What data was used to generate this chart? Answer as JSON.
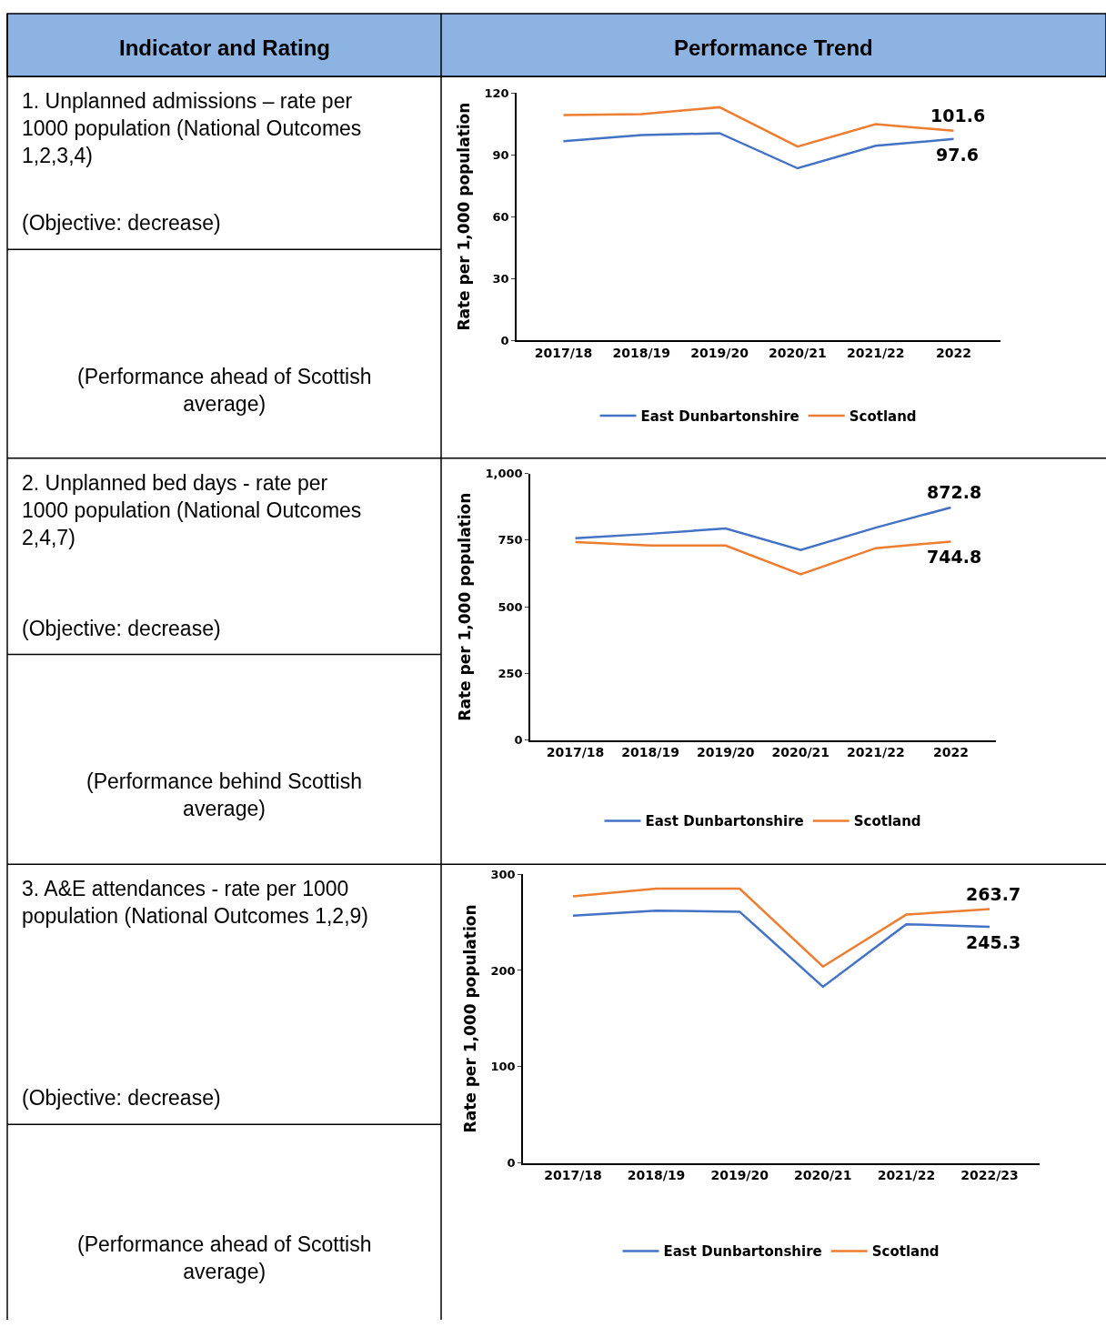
{
  "chart_data": [
    {
      "type": "other",
      "annotations": [
        "Indicator and Rating",
        "Performance Trend"
      ]
    },
    {
      "type": "other",
      "annotations": [
        "1. Unplanned admissions – rate per 1000 population (National Outcomes 1,2,3,4)",
        "(Objective: decrease)",
        "(Performance ahead of Scottish average)"
      ]
    },
    {
      "type": "line",
      "categories": [
        "2017/18",
        "2018/19",
        "2019/20",
        "2020/21",
        "2021/22",
        "2022"
      ],
      "ylabel": "Rate per 1,000 population",
      "ylim": [
        0,
        120
      ],
      "yticks": [
        0,
        30,
        60,
        90,
        120
      ],
      "legend": "bottom",
      "series": [
        {
          "name": "East Dunbartonshire",
          "color": "#4472c4",
          "values": [
            96.5,
            99.5,
            100.4,
            83.4,
            94.3,
            97.6
          ],
          "value_labels": [
            null,
            null,
            null,
            null,
            null,
            "97.6"
          ]
        },
        {
          "name": "Scotland",
          "color": "#ed7d31",
          "values": [
            109.2,
            109.6,
            113,
            93.9,
            104.8,
            101.6
          ],
          "value_labels": [
            null,
            null,
            null,
            null,
            null,
            "101.6"
          ]
        }
      ]
    },
    {
      "type": "other",
      "annotations": [
        "2. Unplanned bed days - rate per 1000 population (National Outcomes 2,4,7)",
        "(Objective: decrease)",
        "(Performance behind Scottish average)"
      ]
    },
    {
      "type": "line",
      "categories": [
        "2017/18",
        "2018/19",
        "2019/20",
        "2020/21",
        "2021/22",
        "2022"
      ],
      "ylabel": "Rate per 1,000 population",
      "ylim": [
        0,
        1000
      ],
      "yticks": [
        0,
        250,
        500,
        750,
        {
          "value": 1000,
          "label": "1,000"
        }
      ],
      "legend": "bottom",
      "series": [
        {
          "name": "East Dunbartonshire",
          "color": "#4472c4",
          "values": [
            757,
            774,
            794,
            713,
            797,
            872.8
          ],
          "value_labels": [
            null,
            null,
            null,
            null,
            null,
            "872.8"
          ]
        },
        {
          "name": "Scotland",
          "color": "#ed7d31",
          "values": [
            743,
            730,
            730,
            622,
            720,
            744.8
          ],
          "value_labels": [
            null,
            null,
            null,
            null,
            null,
            "744.8"
          ]
        }
      ]
    },
    {
      "type": "other",
      "annotations": [
        "3. A&E attendances - rate per 1000 population (National Outcomes 1,2,9)",
        "(Objective: decrease)",
        "(Performance ahead of Scottish average)"
      ]
    },
    {
      "type": "line",
      "categories": [
        "2017/18",
        "2018/19",
        "2019/20",
        "2020/21",
        "2021/22",
        "2022/23"
      ],
      "ylabel": "Rate per 1,000 population",
      "ylim": [
        0,
        300
      ],
      "yticks": [
        0,
        100,
        200,
        300
      ],
      "legend": "bottom",
      "series": [
        {
          "name": "East Dunbartonshire",
          "color": "#4472c4",
          "values": [
            257,
            262,
            261,
            183,
            248,
            245.3
          ],
          "value_labels": [
            null,
            null,
            null,
            null,
            null,
            "245.3"
          ]
        },
        {
          "name": "Scotland",
          "color": "#ed7d31",
          "values": [
            277,
            285,
            285,
            204,
            258,
            263.7
          ],
          "value_labels": [
            null,
            null,
            null,
            null,
            null,
            "263.7"
          ]
        }
      ]
    }
  ]
}
